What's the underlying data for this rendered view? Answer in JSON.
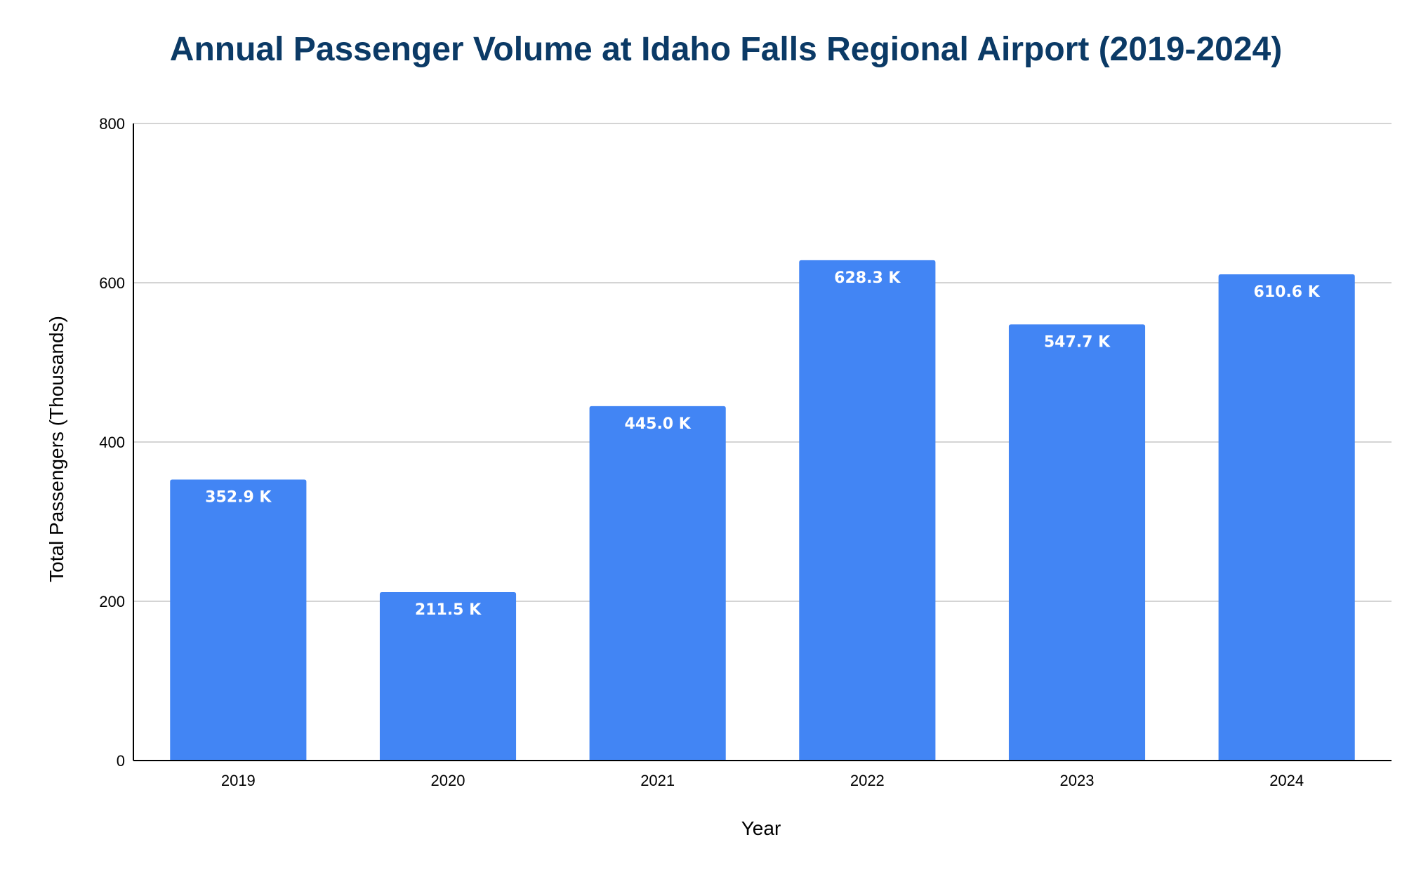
{
  "chart_data": {
    "type": "bar",
    "title": "Annual Passenger Volume at  Idaho Falls Regional Airport (2019-2024)",
    "xlabel": "Year",
    "ylabel": "Total Passengers (Thousands)",
    "categories": [
      "2019",
      "2020",
      "2021",
      "2022",
      "2023",
      "2024"
    ],
    "values": [
      352.9,
      211.5,
      445.0,
      628.3,
      547.7,
      610.6
    ],
    "data_labels": [
      "352.9 K",
      "211.5 K",
      "445.0 K",
      "628.3 K",
      "547.7 K",
      "610.6 K"
    ],
    "ylim": [
      0,
      800
    ],
    "yticks": [
      0,
      200,
      400,
      600,
      800
    ],
    "ytick_labels": [
      "0",
      "200",
      "400",
      "600",
      "800"
    ],
    "grid": true,
    "legend": "none"
  },
  "colors": {
    "bar": "#4285f4",
    "title": "#0b3a66",
    "grid": "#c6c6c6",
    "axis": "#000000",
    "data_label": "#ffffff"
  }
}
